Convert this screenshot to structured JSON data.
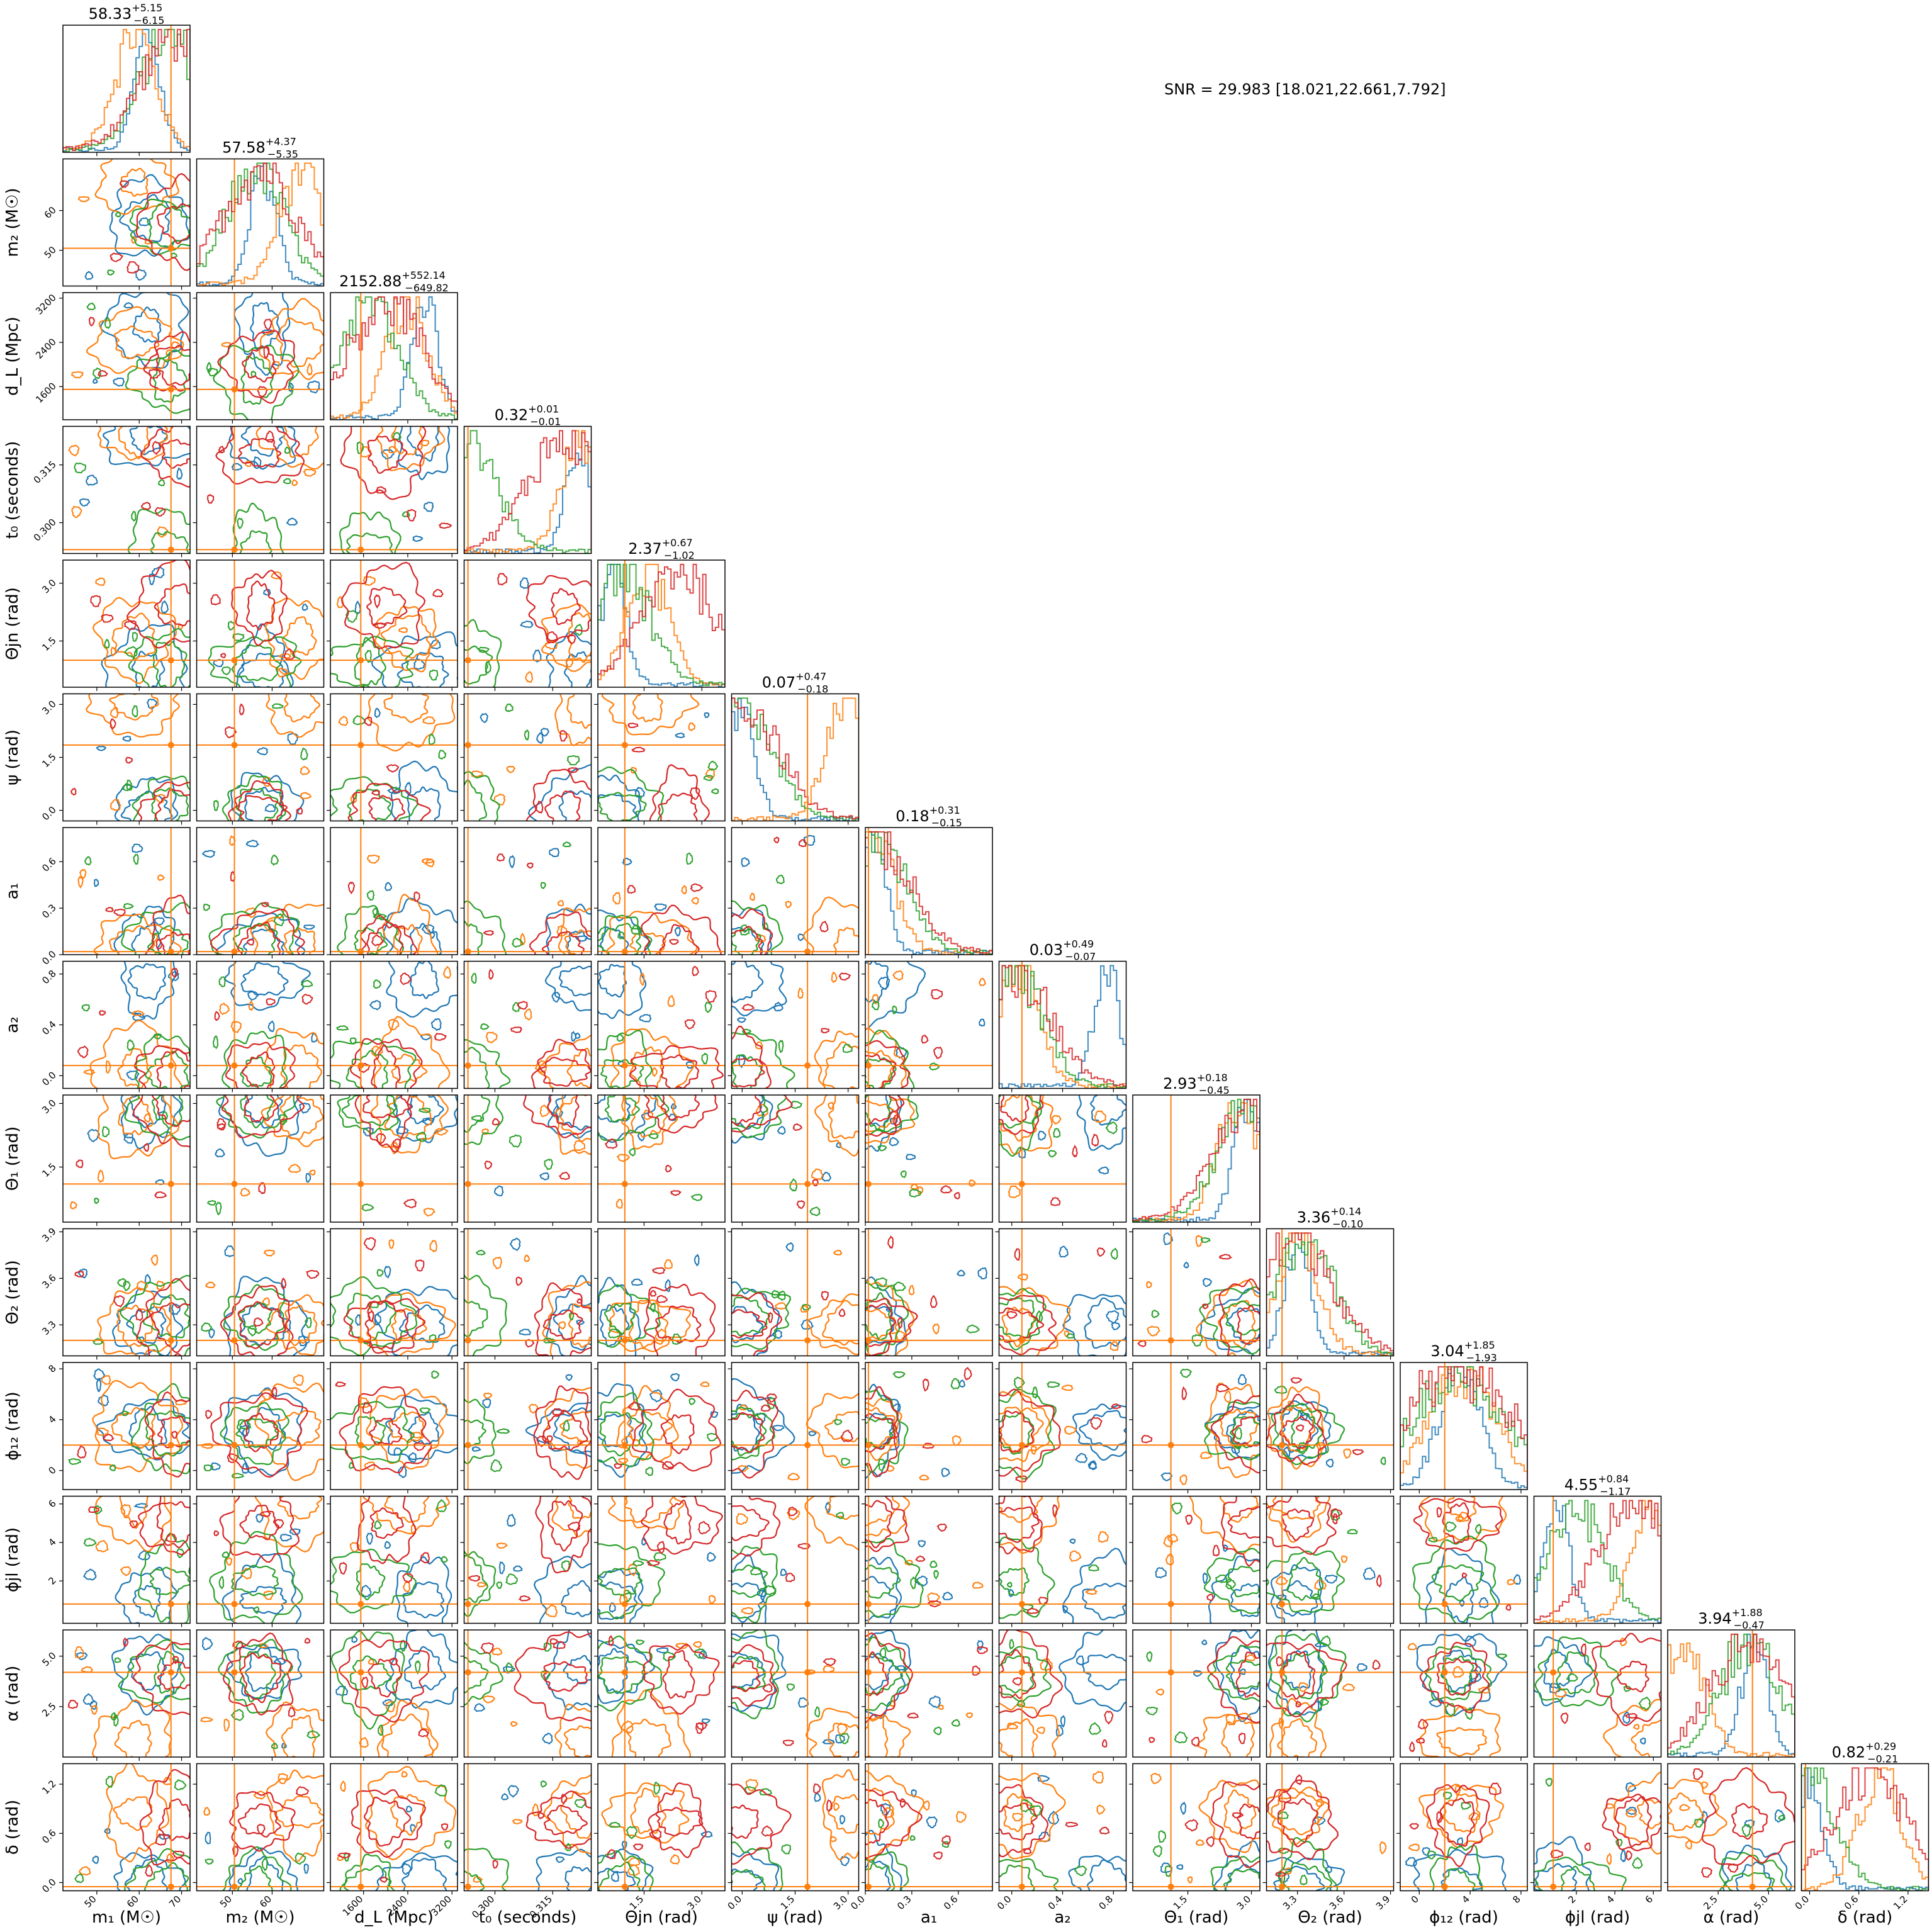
{
  "snr_text": "SNR = 29.983 [18.021,22.661,7.792]",
  "series_colors": [
    "#1f77b4",
    "#ff7f0e",
    "#2ca02c",
    "#d62728"
  ],
  "true_value_color": "#ff7f0e",
  "chart_data": {
    "type": "corner",
    "parameters": [
      {
        "label": "m₁ (M☉)",
        "range": [
          42,
          72
        ],
        "ticks": [
          "50",
          "60",
          "70"
        ],
        "tick_values": [
          50,
          60,
          70
        ],
        "title_main": "58.33",
        "title_plus": "+5.15",
        "title_minus": "−6.15",
        "truth": 67.5
      },
      {
        "label": "m₂ (M☉)",
        "range": [
          41,
          73
        ],
        "ticks": [
          "50",
          "60"
        ],
        "tick_values": [
          50,
          60
        ],
        "title_main": "57.58",
        "title_plus": "+4.37",
        "title_minus": "−5.35",
        "truth": 50.5
      },
      {
        "label": "d_L (Mpc)",
        "range": [
          1000,
          3300
        ],
        "ticks": [
          "1600",
          "2400",
          "3200"
        ],
        "tick_values": [
          1600,
          2400,
          3200
        ],
        "title_main": "2152.88",
        "title_plus": "+552.14",
        "title_minus": "−649.82",
        "truth": 1550
      },
      {
        "label": "t₀ (seconds)",
        "range": [
          0.292,
          0.325
        ],
        "ticks": [
          "0.300",
          "0.315"
        ],
        "tick_values": [
          0.3,
          0.315
        ],
        "title_main": "0.32",
        "title_plus": "+0.01",
        "title_minus": "−0.01",
        "truth": 0.293
      },
      {
        "label": "Θjn (rad)",
        "range": [
          0.3,
          3.6
        ],
        "ticks": [
          "1.5",
          "3.0"
        ],
        "tick_values": [
          1.5,
          3.0
        ],
        "title_main": "2.37",
        "title_plus": "+0.67",
        "title_minus": "−1.02",
        "truth": 1.0
      },
      {
        "label": "ψ (rad)",
        "range": [
          -0.3,
          3.3
        ],
        "ticks": [
          "0.0",
          "1.5",
          "3.0"
        ],
        "tick_values": [
          0.0,
          1.5,
          3.0
        ],
        "title_main": "0.07",
        "title_plus": "+0.47",
        "title_minus": "−0.18",
        "truth": 1.85
      },
      {
        "label": "a₁",
        "range": [
          0.0,
          0.82
        ],
        "ticks": [
          "0.0",
          "0.3",
          "0.6"
        ],
        "tick_values": [
          0.0,
          0.3,
          0.6
        ],
        "title_main": "0.18",
        "title_plus": "+0.31",
        "title_minus": "−0.15",
        "truth": 0.02
      },
      {
        "label": "a₂",
        "range": [
          -0.1,
          0.9
        ],
        "ticks": [
          "0.0",
          "0.4",
          "0.8"
        ],
        "tick_values": [
          0.0,
          0.4,
          0.8
        ],
        "title_main": "0.03",
        "title_plus": "+0.49",
        "title_minus": "−0.07",
        "truth": 0.08
      },
      {
        "label": "Θ₁ (rad)",
        "range": [
          0.2,
          3.2
        ],
        "ticks": [
          "1.5",
          "3.0"
        ],
        "tick_values": [
          1.5,
          3.0
        ],
        "title_main": "2.93",
        "title_plus": "+0.18",
        "title_minus": "−0.45",
        "truth": 1.1
      },
      {
        "label": "Θ₂ (rad)",
        "range": [
          3.1,
          3.92
        ],
        "ticks": [
          "3.3",
          "3.6",
          "3.9"
        ],
        "tick_values": [
          3.3,
          3.6,
          3.9
        ],
        "title_main": "3.36",
        "title_plus": "+0.14",
        "title_minus": "−0.10",
        "truth": 3.2
      },
      {
        "label": "ϕ₁₂ (rad)",
        "range": [
          -1.5,
          8.5
        ],
        "ticks": [
          "0",
          "4",
          "8"
        ],
        "tick_values": [
          0,
          4,
          8
        ],
        "title_main": "3.04",
        "title_plus": "+1.85",
        "title_minus": "−1.93",
        "truth": 2.0
      },
      {
        "label": "ϕjl (rad)",
        "range": [
          -0.2,
          6.4
        ],
        "ticks": [
          "2",
          "4",
          "6"
        ],
        "tick_values": [
          2,
          4,
          6
        ],
        "title_main": "4.55",
        "title_plus": "+0.84",
        "title_minus": "−1.17",
        "truth": 0.8
      },
      {
        "label": "α (rad)",
        "range": [
          0.0,
          6.3
        ],
        "ticks": [
          "2.5",
          "5.0"
        ],
        "tick_values": [
          2.5,
          5.0
        ],
        "title_main": "3.94",
        "title_plus": "+1.88",
        "title_minus": "−0.47",
        "truth": 4.2
      },
      {
        "label": "δ (rad)",
        "range": [
          -0.1,
          1.45
        ],
        "ticks": [
          "0.0",
          "0.6",
          "1.2"
        ],
        "tick_values": [
          0.0,
          0.6,
          1.2
        ],
        "title_main": "0.82",
        "title_plus": "+0.29",
        "title_minus": "−0.21",
        "truth": -0.05
      }
    ],
    "y_tick_overrides": {
      "1": {
        "ticks": [
          "50",
          "60"
        ],
        "tick_values": [
          50,
          60
        ]
      },
      "2": {
        "ticks": [
          "1600",
          "2400",
          "3200"
        ],
        "tick_values": [
          1600,
          2400,
          3200
        ]
      },
      "3": {
        "ticks": [
          "0.300",
          "0.315"
        ],
        "tick_values": [
          0.3,
          0.315
        ]
      },
      "4": {
        "ticks": [
          "1.5",
          "3.0"
        ],
        "tick_values": [
          1.5,
          3.0
        ]
      },
      "5": {
        "ticks": [
          "0.0",
          "1.5",
          "3.0"
        ],
        "tick_values": [
          0.0,
          1.5,
          3.0
        ]
      },
      "6": {
        "ticks": [
          "0.0",
          "0.3",
          "0.6"
        ],
        "tick_values": [
          0.0,
          0.3,
          0.6
        ]
      },
      "7": {
        "ticks": [
          "0.0",
          "0.4",
          "0.8"
        ],
        "tick_values": [
          0.0,
          0.4,
          0.8
        ]
      },
      "8": {
        "ticks": [
          "1.5",
          "3.0"
        ],
        "tick_values": [
          1.5,
          3.0
        ]
      },
      "9": {
        "ticks": [
          "3.3",
          "3.6",
          "3.9"
        ],
        "tick_values": [
          3.3,
          3.6,
          3.9
        ]
      },
      "10": {
        "ticks": [
          "0",
          "4",
          "8"
        ],
        "tick_values": [
          0,
          4,
          8
        ]
      },
      "11": {
        "ticks": [
          "2",
          "4",
          "6"
        ],
        "tick_values": [
          2,
          4,
          6
        ]
      },
      "12": {
        "ticks": [
          "2.5",
          "5.0"
        ],
        "tick_values": [
          2.5,
          5.0
        ]
      },
      "13": {
        "ticks": [
          "0.0",
          "0.6",
          "1.2"
        ],
        "tick_values": [
          0.0,
          0.6,
          1.2
        ]
      }
    },
    "marginal_peaks": {
      "m1": [
        62,
        59,
        67,
        69
      ],
      "m2": [
        58,
        67,
        56,
        57
      ],
      "dL": [
        2700,
        2400,
        1700,
        2000
      ],
      "t0": [
        0.322,
        0.323,
        0.293,
        0.318
      ],
      "theta_jn": [
        0.7,
        1.6,
        0.9,
        2.4
      ],
      "psi": [
        0.0,
        3.0,
        0.1,
        0.0
      ],
      "a1": [
        0.05,
        0.06,
        0.08,
        0.05
      ],
      "a2": [
        0.75,
        0.05,
        0.02,
        0.03
      ],
      "theta1": [
        2.9,
        2.7,
        2.9,
        3.0
      ],
      "theta2": [
        3.3,
        3.3,
        3.35,
        3.3
      ],
      "phi12": [
        3.2,
        3.4,
        3.0,
        3.0
      ],
      "phijl": [
        1.0,
        6.0,
        2.0,
        5.0
      ],
      "alpha": [
        4.3,
        0.8,
        4.1,
        4.0
      ],
      "delta": [
        0.0,
        0.85,
        -0.05,
        0.75
      ]
    },
    "grid": false,
    "legend": "none"
  }
}
